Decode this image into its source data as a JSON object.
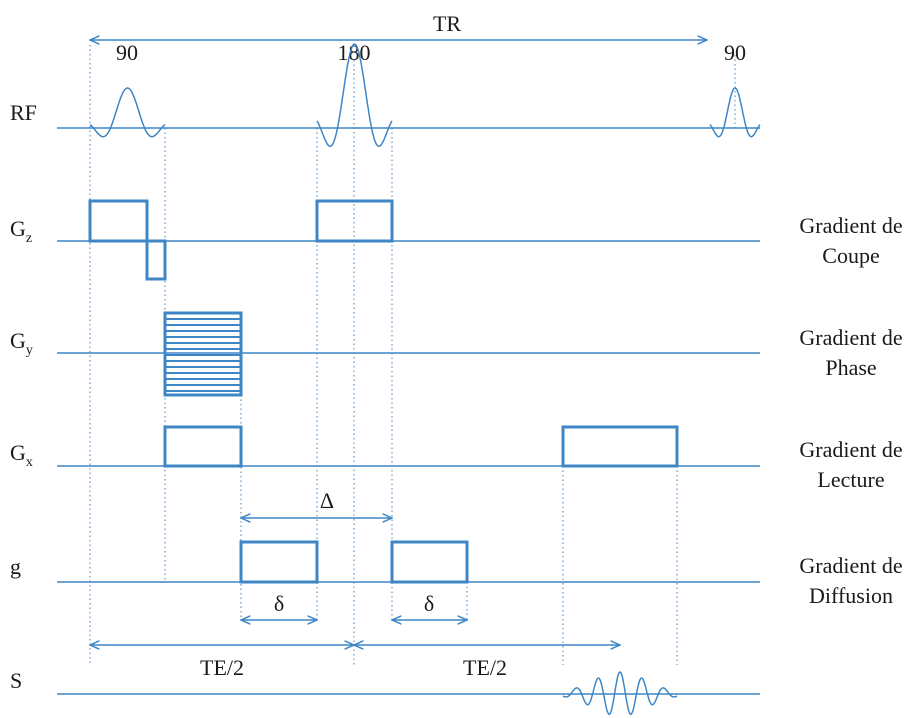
{
  "timing": {
    "tr": "TR",
    "pulse_90_start": "90",
    "pulse_180": "180",
    "pulse_90_end": "90",
    "big_delta": "Δ",
    "delta_1": "δ",
    "delta_2": "δ",
    "te_half_1": "TE/2",
    "te_half_2": "TE/2"
  },
  "rows": {
    "rf": {
      "label": "RF"
    },
    "gz": {
      "label_main": "G",
      "label_sub": "z",
      "desc_line1": "Gradient de",
      "desc_line2": "Coupe"
    },
    "gy": {
      "label_main": "G",
      "label_sub": "y",
      "desc_line1": "Gradient de",
      "desc_line2": "Phase"
    },
    "gx": {
      "label_main": "G",
      "label_sub": "x",
      "desc_line1": "Gradient de",
      "desc_line2": "Lecture"
    },
    "g": {
      "label": "g",
      "desc_line1": "Gradient de",
      "desc_line2": "Diffusion"
    },
    "s": {
      "label": "S"
    }
  },
  "colors": {
    "trace": "#3f86c6",
    "text": "#1a1a1a"
  }
}
